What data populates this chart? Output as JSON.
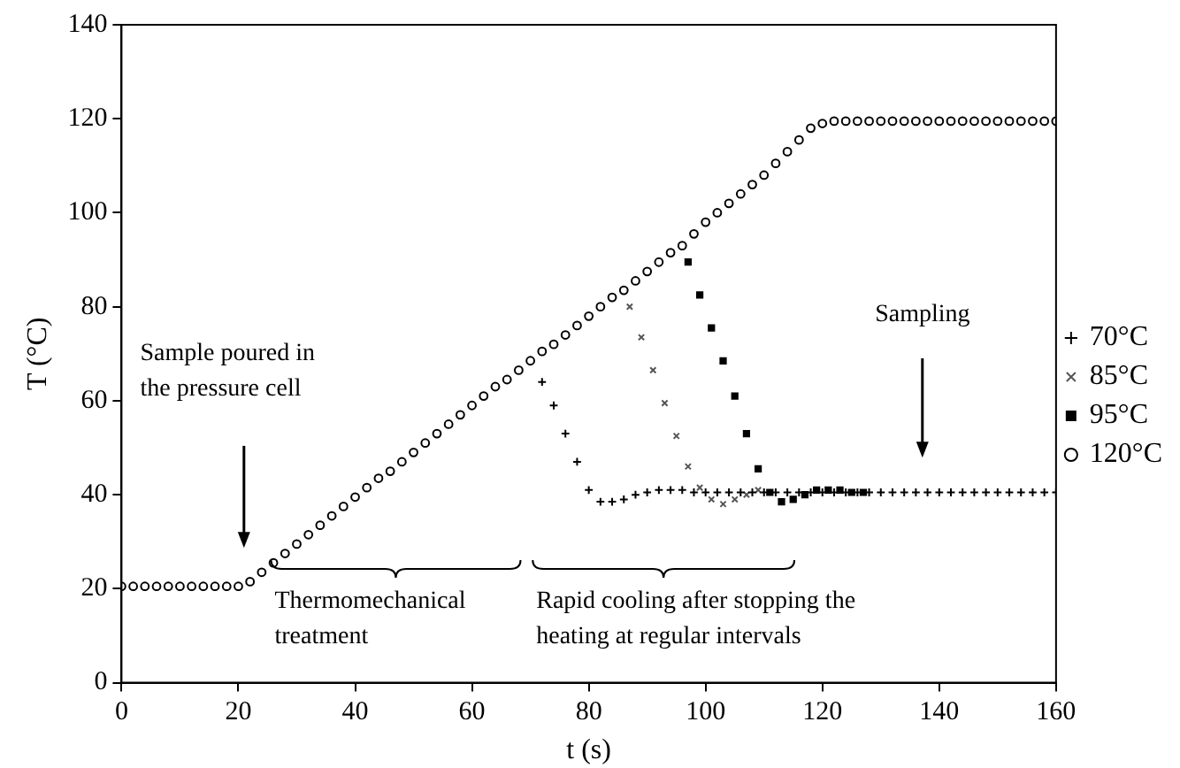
{
  "chart_data": {
    "type": "scatter",
    "xlabel": "t (s)",
    "ylabel": "T (°C)",
    "xlim": [
      0,
      160
    ],
    "xticks": [
      0,
      20,
      40,
      60,
      80,
      100,
      120,
      140,
      160
    ],
    "ylim": [
      0,
      140
    ],
    "yticks": [
      0,
      20,
      40,
      60,
      80,
      100,
      120,
      140
    ],
    "grid": false,
    "legend": "right",
    "series": [
      {
        "name": "70°C",
        "color": "#000000",
        "marker": "cross",
        "x": [
          72,
          74,
          76,
          78,
          80,
          82,
          84,
          86,
          88,
          90,
          92,
          94,
          96,
          98,
          100,
          102,
          104,
          106,
          108,
          110,
          112,
          114,
          116,
          118,
          120,
          122,
          124,
          126,
          128,
          130,
          132,
          134,
          136,
          138,
          140,
          142,
          144,
          146,
          148,
          150,
          152,
          154,
          156,
          158,
          160
        ],
        "values": [
          64,
          59,
          53,
          47,
          41,
          38.5,
          38.5,
          39,
          40,
          40.5,
          41,
          41,
          41,
          40.5,
          40.5,
          40.5,
          40.5,
          40.5,
          40.5,
          40.5,
          40.5,
          40.5,
          40.5,
          40.5,
          40.5,
          40.5,
          40.5,
          40.5,
          40.5,
          40.5,
          40.5,
          40.5,
          40.5,
          40.5,
          40.5,
          40.5,
          40.5,
          40.5,
          40.5,
          40.5,
          40.5,
          40.5,
          40.5,
          40.5,
          40.5
        ]
      },
      {
        "name": "85°C",
        "color": "#555555",
        "x": [
          87,
          89,
          91,
          93,
          95,
          97,
          99,
          101,
          103,
          105,
          107,
          109
        ],
        "values": [
          80,
          73.5,
          66.5,
          59.5,
          52.5,
          46,
          41.5,
          39,
          38,
          39,
          40,
          41
        ]
      },
      {
        "name": "95°C",
        "color": "#000000",
        "marker": "square",
        "x": [
          97,
          99,
          101,
          103,
          105,
          107,
          109,
          111,
          113,
          115,
          117,
          119,
          121,
          123,
          125,
          127
        ],
        "values": [
          89.5,
          82.5,
          75.5,
          68.5,
          61,
          53,
          45.5,
          40.5,
          38.5,
          39,
          40,
          41,
          41,
          41,
          40.5,
          40.5
        ]
      },
      {
        "name": "120°C",
        "color": "#000000",
        "marker": "circle",
        "x": [
          0,
          2,
          4,
          6,
          8,
          10,
          12,
          14,
          16,
          18,
          20,
          22,
          24,
          26,
          28,
          30,
          32,
          34,
          36,
          38,
          40,
          42,
          44,
          46,
          48,
          50,
          52,
          54,
          56,
          58,
          60,
          62,
          64,
          66,
          68,
          70,
          72,
          74,
          76,
          78,
          80,
          82,
          84,
          86,
          88,
          90,
          92,
          94,
          96,
          98,
          100,
          102,
          104,
          106,
          108,
          110,
          112,
          114,
          116,
          118,
          120,
          122,
          124,
          126,
          128,
          130,
          132,
          134,
          136,
          138,
          140,
          142,
          144,
          146,
          148,
          150,
          152,
          154,
          156,
          158,
          160
        ],
        "values": [
          20.5,
          20.5,
          20.5,
          20.5,
          20.5,
          20.5,
          20.5,
          20.5,
          20.5,
          20.5,
          20.5,
          21.5,
          23.5,
          25.5,
          27.5,
          29.5,
          31.5,
          33.5,
          35.5,
          37.5,
          39.5,
          41.5,
          43.5,
          45,
          47,
          49,
          51,
          53,
          55,
          57,
          59,
          61,
          63,
          64.5,
          66.5,
          68.5,
          70.5,
          72,
          74,
          76,
          78,
          80,
          82,
          83.5,
          85.5,
          87.5,
          89.5,
          91.5,
          93,
          95.5,
          98,
          100,
          102,
          104,
          106,
          108,
          110.5,
          113,
          115.5,
          118,
          119,
          119.5,
          119.5,
          119.5,
          119.5,
          119.5,
          119.5,
          119.5,
          119.5,
          119.5,
          119.5,
          119.5,
          119.5,
          119.5,
          119.5,
          119.5,
          119.5,
          119.5,
          119.5,
          119.5,
          119.5
        ]
      }
    ],
    "annotations": [
      "Sample poured in the pressure cell",
      "Thermomechanical treatment",
      "Rapid cooling after stopping the heating at regular intervals",
      "Sampling"
    ]
  }
}
